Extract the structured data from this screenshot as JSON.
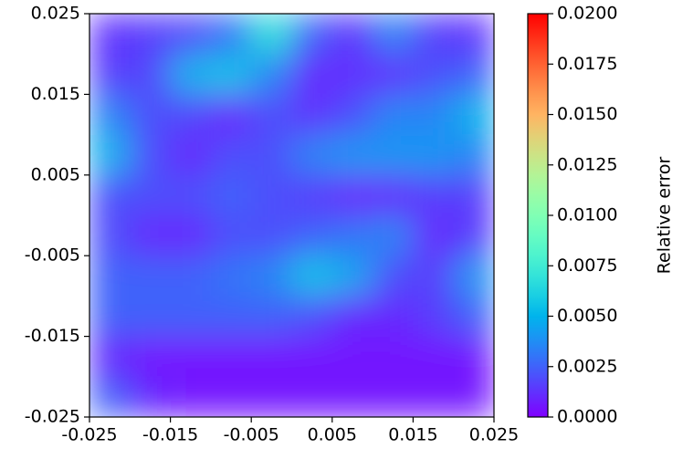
{
  "chart_data": {
    "type": "heatmap",
    "xlim": [
      -0.025,
      0.025
    ],
    "ylim": [
      -0.025,
      0.025
    ],
    "xticks": [
      -0.025,
      -0.015,
      -0.005,
      0.005,
      0.015,
      0.025
    ],
    "yticks": [
      -0.025,
      -0.015,
      -0.005,
      0.005,
      0.015,
      0.025
    ],
    "z": [
      [
        0.0012,
        0.0015,
        0.0018,
        0.003,
        0.007,
        0.0025,
        0.0012,
        0.0035,
        0.0015,
        0.0012
      ],
      [
        0.0015,
        0.0018,
        0.005,
        0.0055,
        0.0035,
        0.001,
        0.0012,
        0.0012,
        0.002,
        0.0025
      ],
      [
        0.0035,
        0.002,
        0.0018,
        0.0008,
        0.002,
        0.0012,
        0.002,
        0.0035,
        0.0035,
        0.005
      ],
      [
        0.005,
        0.002,
        0.001,
        0.002,
        0.002,
        0.0035,
        0.004,
        0.004,
        0.004,
        0.0035
      ],
      [
        0.002,
        0.002,
        0.002,
        0.0025,
        0.002,
        0.0015,
        0.0008,
        0.001,
        0.0015,
        0.0015
      ],
      [
        0.002,
        0.001,
        0.001,
        0.002,
        0.002,
        0.0025,
        0.003,
        0.0035,
        0.001,
        0.0015
      ],
      [
        0.0025,
        0.0025,
        0.0025,
        0.003,
        0.0035,
        0.0055,
        0.0045,
        0.002,
        0.0015,
        0.004
      ],
      [
        0.0025,
        0.0025,
        0.0025,
        0.0025,
        0.0025,
        0.002,
        0.001,
        0.001,
        0.0015,
        0.0025
      ],
      [
        0.001,
        0.0005,
        0.0005,
        0.0005,
        0.0005,
        0.0005,
        0.0005,
        0.0005,
        0.0005,
        0.0005
      ],
      [
        0.0025,
        0.001,
        0.0005,
        0.0005,
        0.0005,
        0.0005,
        0.0005,
        0.0005,
        0.0005,
        0.0005
      ]
    ],
    "colormap": "rainbow",
    "clim": [
      0,
      0.02
    ],
    "cticks": [
      {
        "value": 0,
        "label": "0.0000"
      },
      0.0025,
      {
        "value": 0.005,
        "label": "0.0050"
      },
      0.0075,
      {
        "value": 0.01,
        "label": "0.0100"
      },
      0.0125,
      {
        "value": 0.015,
        "label": "0.0150"
      },
      0.0175,
      {
        "value": 0.02,
        "label": "0.0200"
      }
    ],
    "colorbar_label": "Relative error"
  }
}
